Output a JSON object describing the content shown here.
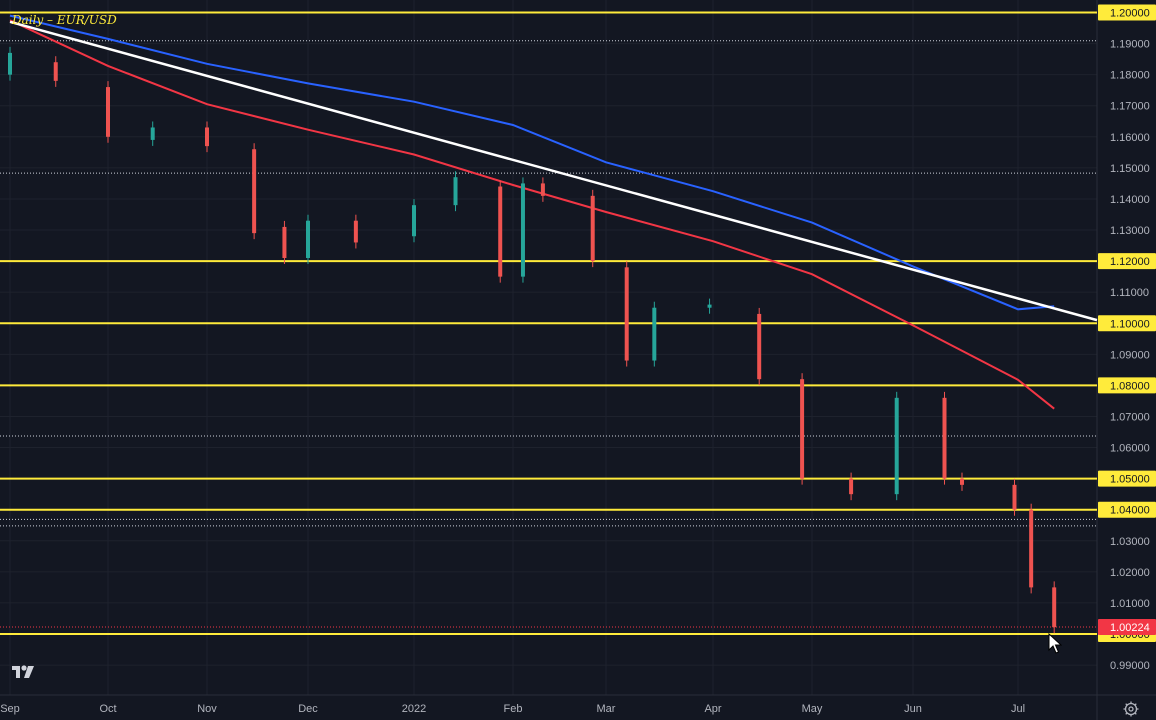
{
  "chart_data": {
    "type": "candlestick",
    "title": "Daily – EUR/USD",
    "symbol": "EUR/USD",
    "interval": "Daily",
    "ylim": [
      0.9866,
      1.2032
    ],
    "y_ticks": [
      "1.19000",
      "1.18000",
      "1.17000",
      "1.16000",
      "1.15000",
      "1.14000",
      "1.13000",
      "1.12000",
      "1.11000",
      "1.10000",
      "1.09000",
      "1.08000",
      "1.07000",
      "1.06000",
      "1.05000",
      "1.04000",
      "1.03000",
      "1.02000",
      "1.01000",
      "1.00000",
      "0.99000"
    ],
    "x_ticks": [
      "Sep",
      "Oct",
      "Nov",
      "Dec",
      "2022",
      "Feb",
      "Mar",
      "Apr",
      "May",
      "Jun",
      "Jul"
    ],
    "last_price": "1.00224",
    "horizontal_levels": [
      {
        "price": 1.2,
        "label": "1.20000",
        "style": "solid",
        "color": "#ffeb3b"
      },
      {
        "price": 1.12,
        "label": "1.12000",
        "style": "solid",
        "color": "#ffeb3b"
      },
      {
        "price": 1.1,
        "label": "1.10000",
        "style": "solid",
        "color": "#ffeb3b"
      },
      {
        "price": 1.08,
        "label": "1.08000",
        "style": "solid",
        "color": "#ffeb3b"
      },
      {
        "price": 1.05,
        "label": "1.05000",
        "style": "solid",
        "color": "#ffeb3b"
      },
      {
        "price": 1.04,
        "label": "1.04000",
        "style": "solid",
        "color": "#ffeb3b"
      },
      {
        "price": 1.0,
        "label": "1.00000",
        "style": "solid",
        "color": "#ffeb3b"
      },
      {
        "price": 1.1909,
        "style": "dotted",
        "color": "#cfd3dc"
      },
      {
        "price": 1.1483,
        "style": "dotted",
        "color": "#cfd3dc"
      },
      {
        "price": 1.0637,
        "style": "dotted",
        "color": "#cfd3dc"
      },
      {
        "price": 1.0369,
        "style": "dotted",
        "color": "#cfd3dc"
      },
      {
        "price": 1.0348,
        "style": "dotted",
        "color": "#cfd3dc"
      }
    ],
    "trendline": {
      "from": {
        "date": "2021-09-01",
        "price": 1.197
      },
      "to": {
        "date": "2022-07-27",
        "price": 1.101
      },
      "color": "#ffffff"
    },
    "moving_averages": [
      {
        "color": "#2962ff",
        "points": [
          [
            "2021-09-01",
            1.199
          ],
          [
            "2021-10-01",
            1.1915
          ],
          [
            "2021-11-01",
            1.1835
          ],
          [
            "2021-12-01",
            1.1772
          ],
          [
            "2022-01-01",
            1.1713
          ],
          [
            "2022-02-01",
            1.1638
          ],
          [
            "2022-03-01",
            1.1518
          ],
          [
            "2022-04-01",
            1.1425
          ],
          [
            "2022-05-01",
            1.1324
          ],
          [
            "2022-06-01",
            1.1183
          ],
          [
            "2022-07-01",
            1.1045
          ],
          [
            "2022-07-12",
            1.1055
          ]
        ]
      },
      {
        "color": "#f23645",
        "points": [
          [
            "2021-09-01",
            1.1975
          ],
          [
            "2021-10-01",
            1.1828
          ],
          [
            "2021-11-01",
            1.1705
          ],
          [
            "2021-12-01",
            1.1623
          ],
          [
            "2022-01-01",
            1.1543
          ],
          [
            "2022-02-01",
            1.1445
          ],
          [
            "2022-03-01",
            1.1358
          ],
          [
            "2022-04-01",
            1.1264
          ],
          [
            "2022-05-01",
            1.1158
          ],
          [
            "2022-06-01",
            1.0993
          ],
          [
            "2022-07-01",
            1.0818
          ],
          [
            "2022-07-12",
            1.0725
          ]
        ]
      }
    ],
    "candles": [
      [
        "2021-09-01",
        1.18,
        1.187
      ],
      [
        "2021-09-15",
        1.184,
        1.178
      ],
      [
        "2021-10-01",
        1.176,
        1.16
      ],
      [
        "2021-10-15",
        1.159,
        1.163
      ],
      [
        "2021-11-01",
        1.163,
        1.157
      ],
      [
        "2021-11-15",
        1.156,
        1.129
      ],
      [
        "2021-11-24",
        1.131,
        1.121
      ],
      [
        "2021-12-01",
        1.121,
        1.133
      ],
      [
        "2021-12-15",
        1.133,
        1.126
      ],
      [
        "2022-01-01",
        1.128,
        1.138
      ],
      [
        "2022-01-14",
        1.138,
        1.147
      ],
      [
        "2022-01-28",
        1.144,
        1.115
      ],
      [
        "2022-02-04",
        1.115,
        1.145
      ],
      [
        "2022-02-10",
        1.145,
        1.141
      ],
      [
        "2022-02-25",
        1.141,
        1.12
      ],
      [
        "2022-03-07",
        1.118,
        1.088
      ],
      [
        "2022-03-15",
        1.088,
        1.105
      ],
      [
        "2022-03-31",
        1.105,
        1.106
      ],
      [
        "2022-04-15",
        1.103,
        1.082
      ],
      [
        "2022-04-28",
        1.082,
        1.05
      ],
      [
        "2022-05-13",
        1.05,
        1.045
      ],
      [
        "2022-05-27",
        1.045,
        1.076
      ],
      [
        "2022-06-10",
        1.076,
        1.05
      ],
      [
        "2022-06-15",
        1.05,
        1.048
      ],
      [
        "2022-06-30",
        1.048,
        1.04
      ],
      [
        "2022-07-05",
        1.04,
        1.015
      ],
      [
        "2022-07-12",
        1.015,
        1.0022
      ]
    ]
  },
  "cursor_icon": "cursor-arrow-icon",
  "logo_icon": "tradingview-logo-icon",
  "settings_icon": "gear-icon"
}
